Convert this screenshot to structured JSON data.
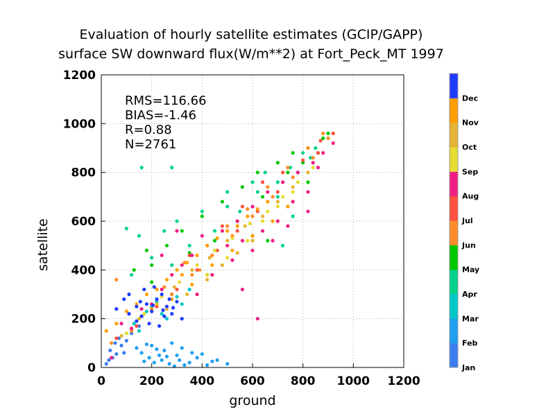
{
  "chart_data": {
    "type": "scatter",
    "title": "Evaluation of hourly satellite estimates (GCIP/GAPP)",
    "subtitle": "surface SW downward flux(W/m**2) at Fort_Peck_MT 1997",
    "xlabel": "ground",
    "ylabel": "satellite",
    "xlim": [
      0,
      1200
    ],
    "ylim": [
      0,
      1200
    ],
    "xticks": [
      "0",
      "200",
      "400",
      "600",
      "800",
      "1000",
      "1200"
    ],
    "yticks": [
      "0",
      "200",
      "400",
      "600",
      "800",
      "1000",
      "1200"
    ],
    "grid": true,
    "stats": {
      "rms": "RMS=116.66",
      "bias": "BIAS=-1.46",
      "r": "R=0.88",
      "n": "N=2761"
    },
    "colorbar": {
      "placement": "right",
      "labels": [
        "Jan",
        "Feb",
        "Mar",
        "Apr",
        "May",
        "Jun",
        "Jul",
        "Aug",
        "Sep",
        "Oct",
        "Nov",
        "Dec"
      ],
      "colors": [
        "#3a7ef0",
        "#1ea0f0",
        "#00c8c8",
        "#00d28c",
        "#00c800",
        "#ff8c28",
        "#ff5040",
        "#f01e82",
        "#e6dc32",
        "#e6b432",
        "#ffa000",
        "#1e3cff"
      ]
    },
    "series": [
      {
        "month": "Jan",
        "points": [
          [
            20,
            15
          ],
          [
            45,
            40
          ],
          [
            60,
            55
          ],
          [
            35,
            70
          ],
          [
            80,
            90
          ],
          [
            100,
            110
          ],
          [
            55,
            100
          ],
          [
            120,
            140
          ],
          [
            90,
            60
          ],
          [
            70,
            120
          ],
          [
            150,
            170
          ],
          [
            30,
            30
          ]
        ]
      },
      {
        "month": "Feb",
        "points": [
          [
            160,
            60
          ],
          [
            190,
            40
          ],
          [
            210,
            20
          ],
          [
            240,
            30
          ],
          [
            270,
            15
          ],
          [
            300,
            50
          ],
          [
            330,
            10
          ],
          [
            360,
            60
          ],
          [
            200,
            90
          ],
          [
            250,
            70
          ],
          [
            280,
            100
          ],
          [
            310,
            30
          ],
          [
            350,
            20
          ],
          [
            380,
            40
          ],
          [
            420,
            10
          ],
          [
            460,
            30
          ],
          [
            500,
            15
          ],
          [
            230,
            50
          ],
          [
            170,
            25
          ],
          [
            140,
            80
          ],
          [
            260,
            45
          ],
          [
            320,
            80
          ],
          [
            400,
            55
          ],
          [
            440,
            25
          ],
          [
            290,
            5
          ],
          [
            220,
            75
          ],
          [
            180,
            95
          ]
        ]
      },
      {
        "month": "Mar",
        "points": [
          [
            130,
            180
          ],
          [
            160,
            210
          ],
          [
            200,
            250
          ],
          [
            240,
            220
          ],
          [
            280,
            300
          ],
          [
            320,
            260
          ],
          [
            150,
            150
          ],
          [
            260,
            200
          ],
          [
            180,
            230
          ],
          [
            350,
            320
          ],
          [
            300,
            290
          ],
          [
            220,
            270
          ]
        ]
      },
      {
        "month": "Apr",
        "points": [
          [
            100,
            570
          ],
          [
            150,
            540
          ],
          [
            250,
            560
          ],
          [
            300,
            600
          ],
          [
            400,
            640
          ],
          [
            500,
            660
          ],
          [
            600,
            760
          ],
          [
            650,
            800
          ],
          [
            700,
            700
          ],
          [
            750,
            820
          ],
          [
            800,
            880
          ],
          [
            850,
            900
          ],
          [
            200,
            450
          ],
          [
            350,
            500
          ],
          [
            450,
            560
          ],
          [
            550,
            640
          ],
          [
            620,
            720
          ],
          [
            700,
            760
          ],
          [
            780,
            800
          ],
          [
            830,
            860
          ],
          [
            880,
            940
          ],
          [
            120,
            380
          ],
          [
            280,
            420
          ],
          [
            500,
            720
          ],
          [
            160,
            820
          ],
          [
            280,
            820
          ],
          [
            720,
            500
          ],
          [
            760,
            620
          ],
          [
            600,
            540
          ],
          [
            450,
            480
          ]
        ]
      },
      {
        "month": "May",
        "points": [
          [
            130,
            400
          ],
          [
            200,
            420
          ],
          [
            260,
            500
          ],
          [
            320,
            560
          ],
          [
            400,
            620
          ],
          [
            480,
            680
          ],
          [
            560,
            740
          ],
          [
            620,
            800
          ],
          [
            700,
            840
          ],
          [
            760,
            880
          ],
          [
            820,
            900
          ],
          [
            880,
            940
          ],
          [
            900,
            960
          ],
          [
            200,
            350
          ],
          [
            350,
            470
          ],
          [
            540,
            600
          ],
          [
            640,
            700
          ],
          [
            740,
            800
          ],
          [
            800,
            840
          ],
          [
            860,
            880
          ],
          [
            450,
            520
          ],
          [
            180,
            480
          ],
          [
            660,
            520
          ],
          [
            820,
            760
          ]
        ]
      },
      {
        "month": "Jun",
        "points": [
          [
            40,
            100
          ],
          [
            120,
            150
          ],
          [
            200,
            240
          ],
          [
            280,
            300
          ],
          [
            360,
            380
          ],
          [
            440,
            460
          ],
          [
            520,
            540
          ],
          [
            600,
            620
          ],
          [
            680,
            700
          ],
          [
            760,
            780
          ],
          [
            840,
            860
          ],
          [
            900,
            940
          ],
          [
            60,
            360
          ],
          [
            250,
            330
          ],
          [
            330,
            430
          ],
          [
            420,
            500
          ],
          [
            500,
            580
          ],
          [
            580,
            650
          ],
          [
            660,
            740
          ],
          [
            740,
            820
          ],
          [
            820,
            900
          ],
          [
            880,
            960
          ],
          [
            160,
            210
          ],
          [
            390,
            400
          ]
        ]
      },
      {
        "month": "Jul",
        "points": [
          [
            60,
            120
          ],
          [
            140,
            170
          ],
          [
            220,
            250
          ],
          [
            300,
            320
          ],
          [
            380,
            400
          ],
          [
            460,
            480
          ],
          [
            540,
            560
          ],
          [
            620,
            640
          ],
          [
            700,
            720
          ],
          [
            780,
            800
          ],
          [
            860,
            880
          ],
          [
            920,
            960
          ],
          [
            480,
            580
          ],
          [
            560,
            660
          ],
          [
            640,
            760
          ],
          [
            720,
            800
          ],
          [
            800,
            850
          ],
          [
            870,
            930
          ],
          [
            420,
            380
          ],
          [
            350,
            460
          ]
        ]
      },
      {
        "month": "Aug",
        "points": [
          [
            40,
            40
          ],
          [
            80,
            180
          ],
          [
            120,
            160
          ],
          [
            160,
            240
          ],
          [
            200,
            260
          ],
          [
            240,
            320
          ],
          [
            280,
            380
          ],
          [
            320,
            420
          ],
          [
            360,
            460
          ],
          [
            420,
            500
          ],
          [
            480,
            560
          ],
          [
            540,
            600
          ],
          [
            600,
            660
          ],
          [
            660,
            720
          ],
          [
            720,
            760
          ],
          [
            780,
            800
          ],
          [
            840,
            840
          ],
          [
            880,
            880
          ],
          [
            920,
            920
          ],
          [
            240,
            460
          ],
          [
            300,
            560
          ],
          [
            400,
            540
          ],
          [
            500,
            500
          ],
          [
            560,
            520
          ],
          [
            640,
            560
          ],
          [
            700,
            600
          ],
          [
            760,
            680
          ],
          [
            820,
            720
          ],
          [
            860,
            820
          ],
          [
            380,
            300
          ],
          [
            440,
            380
          ],
          [
            520,
            440
          ],
          [
            600,
            480
          ],
          [
            680,
            520
          ],
          [
            740,
            580
          ],
          [
            820,
            640
          ],
          [
            620,
            200
          ],
          [
            560,
            320
          ]
        ]
      },
      {
        "month": "Sep",
        "points": [
          [
            100,
            140
          ],
          [
            170,
            220
          ],
          [
            240,
            290
          ],
          [
            310,
            350
          ],
          [
            380,
            420
          ],
          [
            450,
            480
          ],
          [
            520,
            530
          ],
          [
            590,
            590
          ],
          [
            660,
            640
          ],
          [
            720,
            700
          ],
          [
            780,
            760
          ],
          [
            840,
            820
          ],
          [
            420,
            380
          ],
          [
            500,
            450
          ],
          [
            580,
            520
          ],
          [
            640,
            600
          ],
          [
            700,
            660
          ],
          [
            760,
            720
          ]
        ]
      },
      {
        "month": "Oct",
        "points": [
          [
            80,
            130
          ],
          [
            150,
            200
          ],
          [
            220,
            260
          ],
          [
            290,
            330
          ],
          [
            360,
            400
          ],
          [
            430,
            450
          ],
          [
            500,
            520
          ],
          [
            570,
            580
          ],
          [
            640,
            620
          ],
          [
            700,
            680
          ],
          [
            760,
            740
          ],
          [
            820,
            800
          ],
          [
            260,
            240
          ],
          [
            340,
            300
          ],
          [
            420,
            360
          ],
          [
            480,
            420
          ],
          [
            540,
            470
          ],
          [
            600,
            520
          ]
        ]
      },
      {
        "month": "Nov",
        "points": [
          [
            20,
            150
          ],
          [
            60,
            180
          ],
          [
            100,
            230
          ],
          [
            140,
            260
          ],
          [
            180,
            300
          ],
          [
            220,
            320
          ],
          [
            260,
            360
          ],
          [
            300,
            400
          ],
          [
            340,
            430
          ],
          [
            380,
            460
          ],
          [
            420,
            500
          ],
          [
            460,
            530
          ],
          [
            500,
            560
          ],
          [
            540,
            580
          ],
          [
            580,
            620
          ],
          [
            620,
            650
          ],
          [
            660,
            680
          ],
          [
            200,
            240
          ],
          [
            280,
            280
          ],
          [
            360,
            340
          ],
          [
            440,
            420
          ],
          [
            520,
            480
          ],
          [
            600,
            540
          ],
          [
            680,
            600
          ],
          [
            740,
            660
          ],
          [
            320,
            380
          ]
        ]
      },
      {
        "month": "Dec",
        "points": [
          [
            60,
            240
          ],
          [
            90,
            280
          ],
          [
            110,
            300
          ],
          [
            140,
            250
          ],
          [
            160,
            210
          ],
          [
            180,
            260
          ],
          [
            200,
            230
          ],
          [
            220,
            280
          ],
          [
            240,
            300
          ],
          [
            260,
            250
          ],
          [
            280,
            220
          ],
          [
            300,
            270
          ],
          [
            320,
            200
          ],
          [
            170,
            320
          ],
          [
            210,
            330
          ],
          [
            250,
            210
          ],
          [
            140,
            190
          ],
          [
            190,
            180
          ],
          [
            230,
            170
          ],
          [
            270,
            280
          ],
          [
            110,
            220
          ],
          [
            155,
            270
          ],
          [
            205,
            255
          ],
          [
            245,
            235
          ],
          [
            285,
            245
          ]
        ]
      }
    ]
  }
}
